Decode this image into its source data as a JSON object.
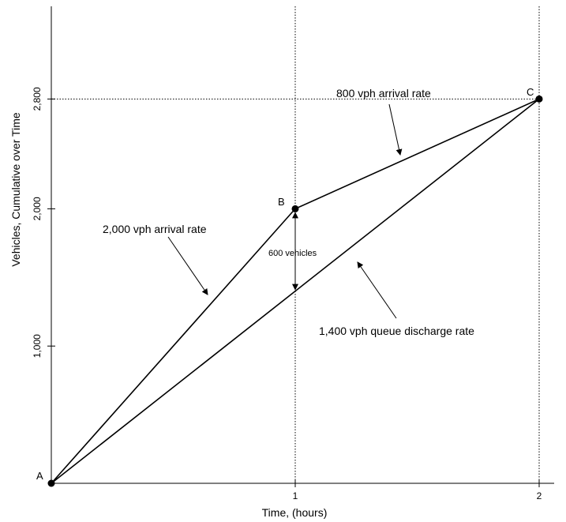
{
  "chart_data": {
    "type": "line",
    "xlabel": "Time, (hours)",
    "ylabel": "Vehicles, Cumulative over Time",
    "xlim": [
      0,
      2.1
    ],
    "ylim": [
      0,
      3400
    ],
    "x_ticks": [
      {
        "value": 1,
        "label": "1"
      },
      {
        "value": 2,
        "label": "2"
      }
    ],
    "y_ticks": [
      {
        "value": 1000,
        "label": "1,000"
      },
      {
        "value": 2000,
        "label": "2,000"
      },
      {
        "value": 2800,
        "label": "2,800"
      }
    ],
    "series": [
      {
        "key": "arrivals",
        "points": [
          [
            0,
            0
          ],
          [
            1,
            2000
          ],
          [
            2,
            2800
          ]
        ]
      },
      {
        "key": "discharge",
        "points": [
          [
            0,
            0
          ],
          [
            2,
            2800
          ]
        ]
      }
    ],
    "points": [
      {
        "label": "A",
        "x": 0,
        "y": 0
      },
      {
        "label": "B",
        "x": 1,
        "y": 2000
      },
      {
        "label": "C",
        "x": 2,
        "y": 2800
      }
    ],
    "annotations": {
      "arrival_rate_1": "2,000 vph arrival rate",
      "arrival_rate_2": "800 vph arrival rate",
      "discharge_rate": "1,400 vph queue discharge rate",
      "queue_length": "600 vehicles"
    }
  }
}
